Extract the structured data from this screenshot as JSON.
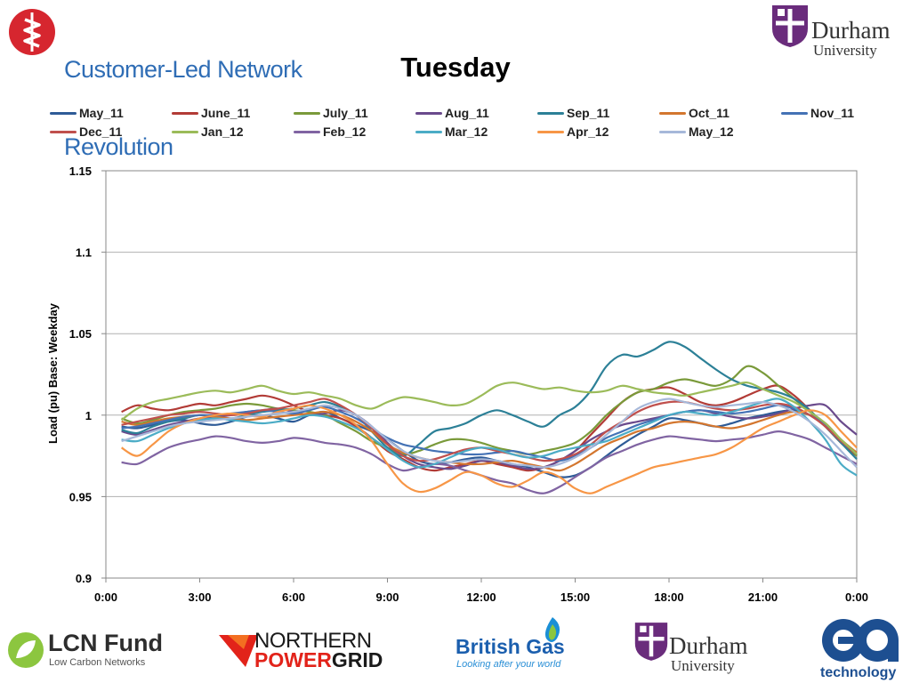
{
  "header": {
    "logo_left": {
      "line1": "Customer-Led Network",
      "line2": "Revolution"
    },
    "logo_right": {
      "line1": "Durham",
      "line2": "University"
    }
  },
  "slide_title": "Tuesday",
  "chart_data": {
    "type": "line",
    "title": "Tuesday",
    "xlabel": "",
    "ylabel": "Load (pu) Base: Weekday",
    "x_ticks": [
      "0:00",
      "3:00",
      "6:00",
      "9:00",
      "12:00",
      "15:00",
      "18:00",
      "21:00",
      "0:00"
    ],
    "y_ticks": [
      "0.9",
      "0.95",
      "1",
      "1.05",
      "1.1",
      "1.15"
    ],
    "xlim": [
      0,
      24
    ],
    "ylim": [
      0.9,
      1.15
    ],
    "grid": "horizontal",
    "legend_position": "top",
    "x_hours": [
      0.5,
      1,
      1.5,
      2,
      2.5,
      3,
      3.5,
      4,
      4.5,
      5,
      5.5,
      6,
      6.5,
      7,
      7.5,
      8,
      8.5,
      9,
      9.5,
      10,
      10.5,
      11,
      11.5,
      12,
      12.5,
      13,
      13.5,
      14,
      14.5,
      15,
      15.5,
      16,
      16.5,
      17,
      17.5,
      18,
      18.5,
      19,
      19.5,
      20,
      20.5,
      21,
      21.5,
      22,
      22.5,
      23,
      23.5,
      24
    ],
    "series": [
      {
        "name": "May_11",
        "color": "#2e5b97",
        "values": [
          0.993,
          0.992,
          0.994,
          0.996,
          0.997,
          0.995,
          0.994,
          0.996,
          0.999,
          1.0,
          0.998,
          0.996,
          1.0,
          1.002,
          0.998,
          0.994,
          0.99,
          0.985,
          0.978,
          0.972,
          0.97,
          0.971,
          0.973,
          0.974,
          0.972,
          0.97,
          0.968,
          0.965,
          0.962,
          0.963,
          0.968,
          0.975,
          0.982,
          0.988,
          0.993,
          0.998,
          0.997,
          0.995,
          0.993,
          0.995,
          0.998,
          1.0,
          1.002,
          1.003,
          1.0,
          0.993,
          0.983,
          0.975
        ]
      },
      {
        "name": "June_11",
        "color": "#b23b36",
        "values": [
          1.002,
          1.006,
          1.004,
          1.003,
          1.005,
          1.007,
          1.006,
          1.008,
          1.01,
          1.012,
          1.01,
          1.006,
          1.002,
          1.0,
          0.998,
          0.993,
          0.986,
          0.978,
          0.973,
          0.968,
          0.966,
          0.968,
          0.97,
          0.972,
          0.97,
          0.968,
          0.966,
          0.968,
          0.972,
          0.978,
          0.988,
          0.998,
          1.008,
          1.014,
          1.016,
          1.017,
          1.013,
          1.008,
          1.006,
          1.008,
          1.012,
          1.016,
          1.018,
          1.012,
          1.003,
          0.993,
          0.983,
          0.975
        ]
      },
      {
        "name": "July_11",
        "color": "#7a9a3a",
        "values": [
          0.998,
          0.995,
          0.997,
          1.0,
          1.002,
          1.003,
          1.004,
          1.006,
          1.007,
          1.006,
          1.004,
          1.003,
          1.002,
          1.0,
          0.995,
          0.99,
          0.984,
          0.98,
          0.976,
          0.978,
          0.982,
          0.985,
          0.985,
          0.983,
          0.98,
          0.978,
          0.976,
          0.978,
          0.98,
          0.983,
          0.99,
          1.0,
          1.008,
          1.014,
          1.016,
          1.02,
          1.022,
          1.02,
          1.018,
          1.022,
          1.03,
          1.026,
          1.018,
          1.01,
          1.002,
          0.993,
          0.985,
          0.975
        ]
      },
      {
        "name": "Aug_11",
        "color": "#6a4a8c",
        "values": [
          0.99,
          0.988,
          0.991,
          0.994,
          0.996,
          0.998,
          0.999,
          1.0,
          1.002,
          1.003,
          1.004,
          1.002,
          1.0,
          1.001,
          1.003,
          1.0,
          0.993,
          0.983,
          0.975,
          0.97,
          0.968,
          0.967,
          0.969,
          0.972,
          0.971,
          0.969,
          0.967,
          0.968,
          0.972,
          0.978,
          0.985,
          0.99,
          0.994,
          0.996,
          0.998,
          1.0,
          1.002,
          1.003,
          1.001,
          0.999,
          0.998,
          0.999,
          1.001,
          1.004,
          1.006,
          1.006,
          0.996,
          0.988
        ]
      },
      {
        "name": "Sep_11",
        "color": "#2c8097",
        "values": [
          0.991,
          0.989,
          0.993,
          0.996,
          0.998,
          1.0,
          0.999,
          0.998,
          1.0,
          1.002,
          1.003,
          1.004,
          1.006,
          1.008,
          1.005,
          1.0,
          0.99,
          0.98,
          0.975,
          0.982,
          0.99,
          0.992,
          0.995,
          1.0,
          1.003,
          1.0,
          0.996,
          0.993,
          1.0,
          1.005,
          1.015,
          1.03,
          1.037,
          1.036,
          1.04,
          1.045,
          1.042,
          1.035,
          1.028,
          1.022,
          1.018,
          1.016,
          1.014,
          1.01,
          1.003,
          0.993,
          0.983,
          0.973
        ]
      },
      {
        "name": "Oct_11",
        "color": "#d3762e",
        "values": [
          0.996,
          0.994,
          0.996,
          0.998,
          0.999,
          1.0,
          0.999,
          0.998,
          0.997,
          0.998,
          0.999,
          1.0,
          1.001,
          1.002,
          1.0,
          0.996,
          0.99,
          0.982,
          0.977,
          0.974,
          0.972,
          0.971,
          0.97,
          0.97,
          0.971,
          0.972,
          0.97,
          0.968,
          0.966,
          0.97,
          0.976,
          0.982,
          0.986,
          0.99,
          0.992,
          0.995,
          0.996,
          0.995,
          0.993,
          0.992,
          0.994,
          0.997,
          1.0,
          1.002,
          1.0,
          0.995,
          0.985,
          0.977
        ]
      },
      {
        "name": "Nov_11",
        "color": "#4472b5",
        "values": [
          0.992,
          0.993,
          0.995,
          0.997,
          0.999,
          1.0,
          1.0,
          1.001,
          1.002,
          1.003,
          1.002,
          1.001,
          1.003,
          1.005,
          1.002,
          0.998,
          0.992,
          0.986,
          0.982,
          0.98,
          0.978,
          0.977,
          0.976,
          0.976,
          0.977,
          0.978,
          0.976,
          0.974,
          0.972,
          0.975,
          0.98,
          0.986,
          0.99,
          0.994,
          0.997,
          1.0,
          1.002,
          1.003,
          1.002,
          1.001,
          1.002,
          1.004,
          1.006,
          1.004,
          1.0,
          0.994,
          0.984,
          0.976
        ]
      },
      {
        "name": "Dec_11",
        "color": "#c0504d",
        "values": [
          0.994,
          0.996,
          0.998,
          1.0,
          1.001,
          1.002,
          1.001,
          1.0,
          1.001,
          1.003,
          1.004,
          1.006,
          1.008,
          1.01,
          1.006,
          1.0,
          0.992,
          0.982,
          0.975,
          0.972,
          0.973,
          0.976,
          0.979,
          0.98,
          0.978,
          0.976,
          0.974,
          0.972,
          0.973,
          0.976,
          0.982,
          0.99,
          0.996,
          1.002,
          1.006,
          1.008,
          1.008,
          1.006,
          1.004,
          1.003,
          1.004,
          1.006,
          1.007,
          1.005,
          1.0,
          0.993,
          0.984,
          0.976
        ]
      },
      {
        "name": "Jan_12",
        "color": "#9bbb59",
        "values": [
          0.997,
          1.004,
          1.008,
          1.01,
          1.012,
          1.014,
          1.015,
          1.014,
          1.016,
          1.018,
          1.015,
          1.013,
          1.014,
          1.012,
          1.01,
          1.006,
          1.004,
          1.008,
          1.011,
          1.01,
          1.008,
          1.006,
          1.007,
          1.012,
          1.018,
          1.02,
          1.018,
          1.016,
          1.017,
          1.015,
          1.014,
          1.015,
          1.018,
          1.016,
          1.014,
          1.013,
          1.012,
          1.014,
          1.016,
          1.018,
          1.02,
          1.016,
          1.012,
          1.008,
          1.002,
          0.995,
          0.985,
          0.976
        ]
      },
      {
        "name": "Feb_12",
        "color": "#8064a2",
        "values": [
          0.971,
          0.97,
          0.975,
          0.98,
          0.983,
          0.985,
          0.987,
          0.986,
          0.984,
          0.983,
          0.984,
          0.986,
          0.985,
          0.983,
          0.982,
          0.98,
          0.976,
          0.97,
          0.966,
          0.968,
          0.97,
          0.969,
          0.966,
          0.963,
          0.96,
          0.958,
          0.954,
          0.952,
          0.956,
          0.962,
          0.968,
          0.974,
          0.978,
          0.982,
          0.985,
          0.987,
          0.986,
          0.985,
          0.984,
          0.985,
          0.986,
          0.988,
          0.99,
          0.988,
          0.985,
          0.98,
          0.975,
          0.97
        ]
      },
      {
        "name": "Mar_12",
        "color": "#4bacc6",
        "values": [
          0.985,
          0.984,
          0.988,
          0.992,
          0.995,
          0.997,
          0.998,
          0.997,
          0.996,
          0.995,
          0.996,
          0.998,
          1.0,
          0.999,
          0.996,
          0.992,
          0.986,
          0.979,
          0.972,
          0.968,
          0.97,
          0.974,
          0.978,
          0.98,
          0.979,
          0.976,
          0.974,
          0.975,
          0.978,
          0.98,
          0.982,
          0.984,
          0.988,
          0.992,
          0.996,
          1.0,
          1.002,
          1.001,
          1.0,
          1.002,
          1.005,
          1.008,
          1.01,
          1.005,
          0.996,
          0.985,
          0.97,
          0.963
        ]
      },
      {
        "name": "Apr_12",
        "color": "#f79646",
        "values": [
          0.98,
          0.975,
          0.982,
          0.99,
          0.995,
          0.998,
          1.0,
          1.001,
          1.0,
          0.999,
          1.002,
          1.004,
          1.006,
          1.004,
          1.0,
          0.994,
          0.984,
          0.97,
          0.958,
          0.953,
          0.955,
          0.96,
          0.965,
          0.963,
          0.958,
          0.956,
          0.96,
          0.965,
          0.962,
          0.955,
          0.952,
          0.956,
          0.96,
          0.964,
          0.968,
          0.97,
          0.972,
          0.974,
          0.976,
          0.98,
          0.986,
          0.992,
          0.996,
          1.0,
          1.003,
          1.0,
          0.99,
          0.98
        ]
      },
      {
        "name": "May_12",
        "color": "#a6b8d9",
        "values": [
          0.984,
          0.987,
          0.99,
          0.993,
          0.995,
          0.996,
          0.997,
          0.998,
          0.999,
          1.0,
          1.001,
          1.002,
          1.004,
          1.006,
          1.004,
          1.0,
          0.993,
          0.985,
          0.978,
          0.974,
          0.972,
          0.971,
          0.972,
          0.973,
          0.972,
          0.97,
          0.969,
          0.968,
          0.97,
          0.974,
          0.98,
          0.988,
          0.996,
          1.004,
          1.008,
          1.01,
          1.008,
          1.006,
          1.005,
          1.006,
          1.007,
          1.008,
          1.006,
          1.002,
          0.996,
          0.988,
          0.978,
          0.968
        ]
      }
    ]
  },
  "footer": {
    "lcn": {
      "title": "LCN Fund",
      "subtitle": "Low Carbon Networks"
    },
    "npg": {
      "line1": "NORTHERN",
      "line2a": "POWER",
      "line2b": "GRID"
    },
    "bg": {
      "title": "British Gas",
      "subtitle": "Looking after your world"
    },
    "durham": {
      "line1": "Durham",
      "line2": "University"
    },
    "ea": {
      "mark": "ea",
      "text": "technology"
    }
  }
}
